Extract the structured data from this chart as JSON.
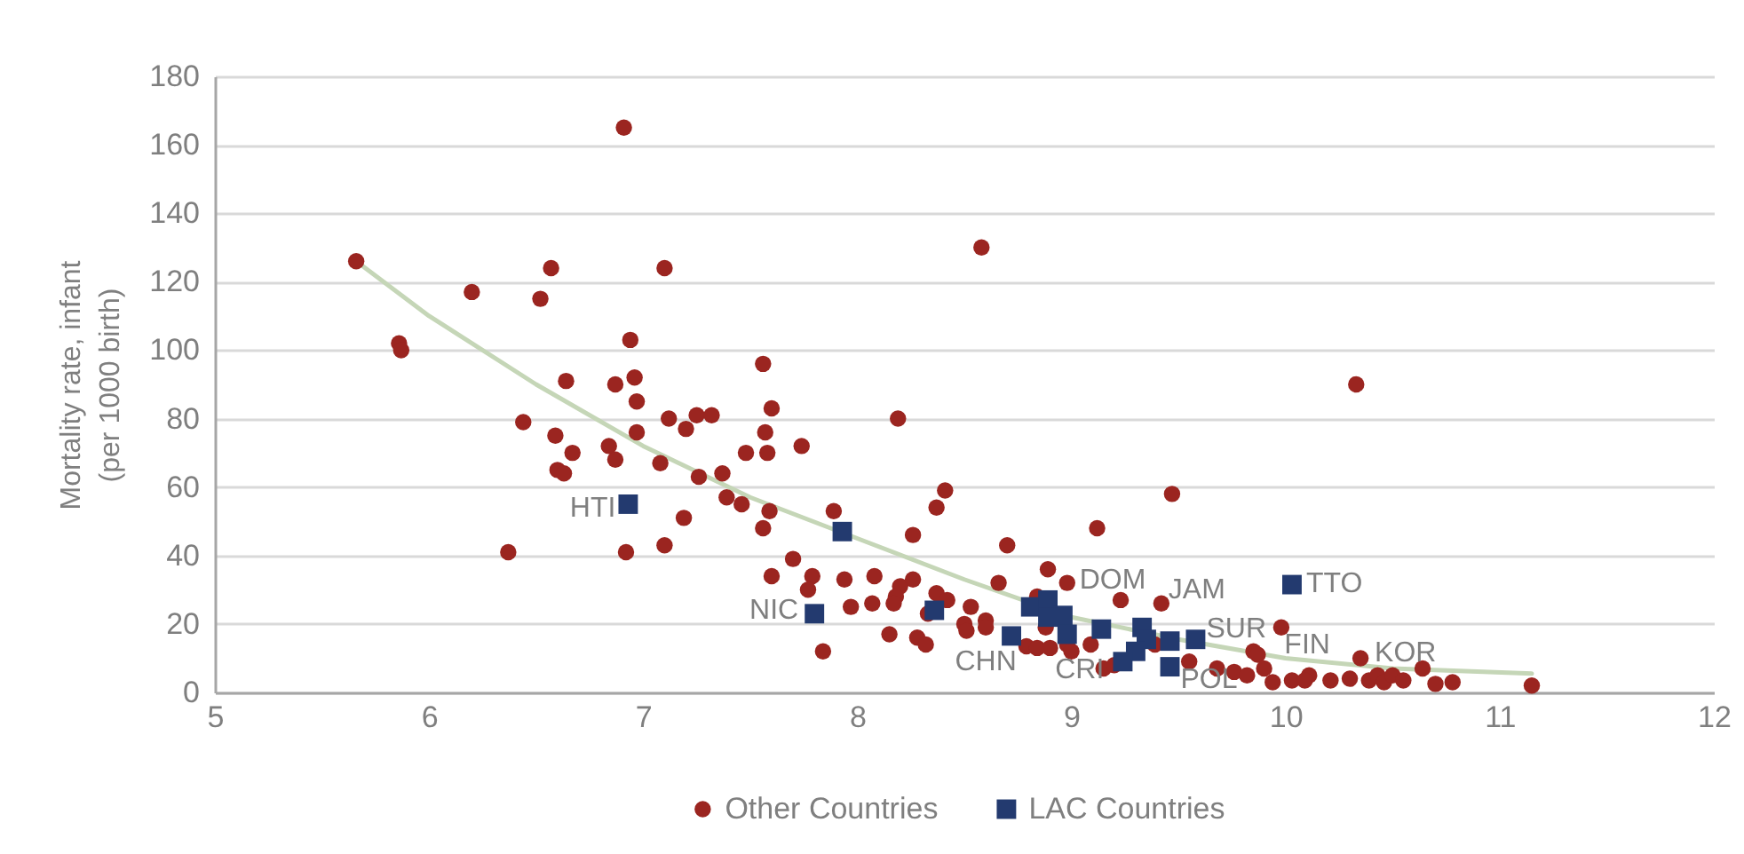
{
  "chart_data": {
    "type": "scatter",
    "ylabel": "Mortality rate, infant\n(per 1000 birth)",
    "xlim": [
      5,
      12
    ],
    "xticks": [
      5,
      6,
      7,
      8,
      9,
      10,
      11,
      12
    ],
    "ylim": [
      0,
      180
    ],
    "yticks": [
      0,
      20,
      40,
      60,
      80,
      100,
      120,
      140,
      160,
      180
    ],
    "grid": "y",
    "legend": "bottom",
    "series": [
      {
        "name": "Other Countries",
        "color": "#9b2520",
        "marker": "circle",
        "x": [
          5.66,
          5.86,
          5.87,
          6.2,
          6.57,
          6.52,
          6.91,
          7.1,
          6.94,
          6.96,
          6.87,
          6.64,
          6.97,
          7.12,
          7.25,
          7.32,
          7.2,
          6.97,
          6.44,
          6.59,
          6.67,
          6.84,
          6.87,
          6.6,
          6.63,
          7.08,
          7.26,
          7.37,
          7.39,
          7.19,
          6.37,
          6.92,
          7.1,
          7.56,
          7.6,
          7.57,
          7.58,
          7.48,
          7.74,
          7.46,
          7.59,
          7.56,
          7.89,
          7.7,
          7.6,
          7.79,
          7.77,
          7.94,
          8.08,
          7.97,
          8.07,
          8.19,
          8.26,
          8.41,
          8.37,
          8.2,
          8.26,
          8.18,
          8.17,
          8.37,
          8.42,
          8.33,
          8.15,
          8.28,
          8.32,
          7.84,
          8.53,
          8.5,
          8.51,
          8.6,
          8.6,
          8.7,
          8.66,
          8.89,
          8.98,
          9.12,
          9.23,
          9.42,
          9.47,
          8.79,
          8.84,
          8.9,
          8.88,
          8.84,
          8.98,
          9.0,
          9.09,
          9.15,
          9.2,
          9.39,
          9.98,
          9.85,
          9.87,
          9.9,
          9.68,
          9.76,
          9.82,
          9.94,
          10.03,
          10.11,
          10.09,
          10.21,
          10.3,
          10.35,
          10.39,
          10.43,
          10.46,
          10.5,
          10.55,
          10.64,
          10.7,
          10.78,
          11.15,
          9.55,
          8.58,
          10.33
        ],
        "values": [
          126,
          102,
          100,
          117,
          124,
          115,
          165,
          124,
          103,
          92,
          90,
          91,
          85,
          80,
          81,
          81,
          77,
          76,
          79,
          75,
          70,
          72,
          68,
          65,
          64,
          67,
          63,
          64,
          57,
          51,
          41,
          41,
          43,
          96,
          83,
          76,
          70,
          70,
          72,
          55,
          53,
          48,
          53,
          39,
          34,
          34,
          30,
          33,
          34,
          25,
          26,
          80,
          46,
          59,
          54,
          31,
          33,
          28,
          26,
          29,
          27,
          23,
          17,
          16,
          14,
          12,
          25,
          20,
          18,
          21,
          19,
          43,
          32,
          36,
          32,
          48,
          27,
          26,
          58,
          13.5,
          13,
          13,
          19,
          28,
          14,
          12,
          14,
          7,
          8,
          14,
          19,
          12,
          11,
          7,
          7,
          6,
          5,
          3,
          3.5,
          5,
          3.5,
          3.5,
          4,
          10,
          3.5,
          5,
          3,
          5,
          3.5,
          7,
          2.5,
          3,
          2,
          9,
          130,
          90
        ]
      },
      {
        "name": "LAC Countries",
        "color": "#233a6f",
        "marker": "square",
        "x": [
          6.93,
          7.8,
          7.93,
          8.36,
          8.72,
          8.81,
          8.89,
          8.96,
          8.89,
          8.98,
          9.14,
          9.33,
          9.35,
          9.3,
          9.24,
          9.46,
          9.46,
          9.58,
          10.03
        ],
        "values": [
          55,
          23,
          47,
          24,
          16.5,
          25,
          27,
          22.5,
          22,
          17,
          18.5,
          19,
          15.5,
          12,
          9,
          15,
          7.5,
          15.5,
          31.5
        ]
      },
      {
        "type": "line",
        "color": "#c5d6b7",
        "x": [
          5.66,
          6.0,
          6.5,
          7.0,
          7.5,
          8.0,
          8.5,
          9.0,
          9.5,
          10.0,
          10.5,
          11.15
        ],
        "values": [
          126,
          110,
          90,
          72,
          57,
          45,
          33,
          22,
          15.5,
          10,
          7,
          5.5
        ]
      }
    ],
    "annotations": [
      {
        "text": "HTI",
        "x": 6.93,
        "y": 55
      },
      {
        "text": "NIC",
        "x": 7.8,
        "y": 23
      },
      {
        "text": "CHN",
        "x": 8.6,
        "y": 19
      },
      {
        "text": "CRI",
        "x": 8.98,
        "y": 17
      },
      {
        "text": "DOM",
        "x": 8.98,
        "y": 32
      },
      {
        "text": "JAM",
        "x": 9.42,
        "y": 26
      },
      {
        "text": "SUR",
        "x": 9.58,
        "y": 15.5
      },
      {
        "text": "POL",
        "x": 9.46,
        "y": 7.5
      },
      {
        "text": "FIN",
        "x": 9.87,
        "y": 11
      },
      {
        "text": "KOR",
        "x": 10.35,
        "y": 10
      },
      {
        "text": "TTO",
        "x": 10.03,
        "y": 31.5
      }
    ]
  }
}
